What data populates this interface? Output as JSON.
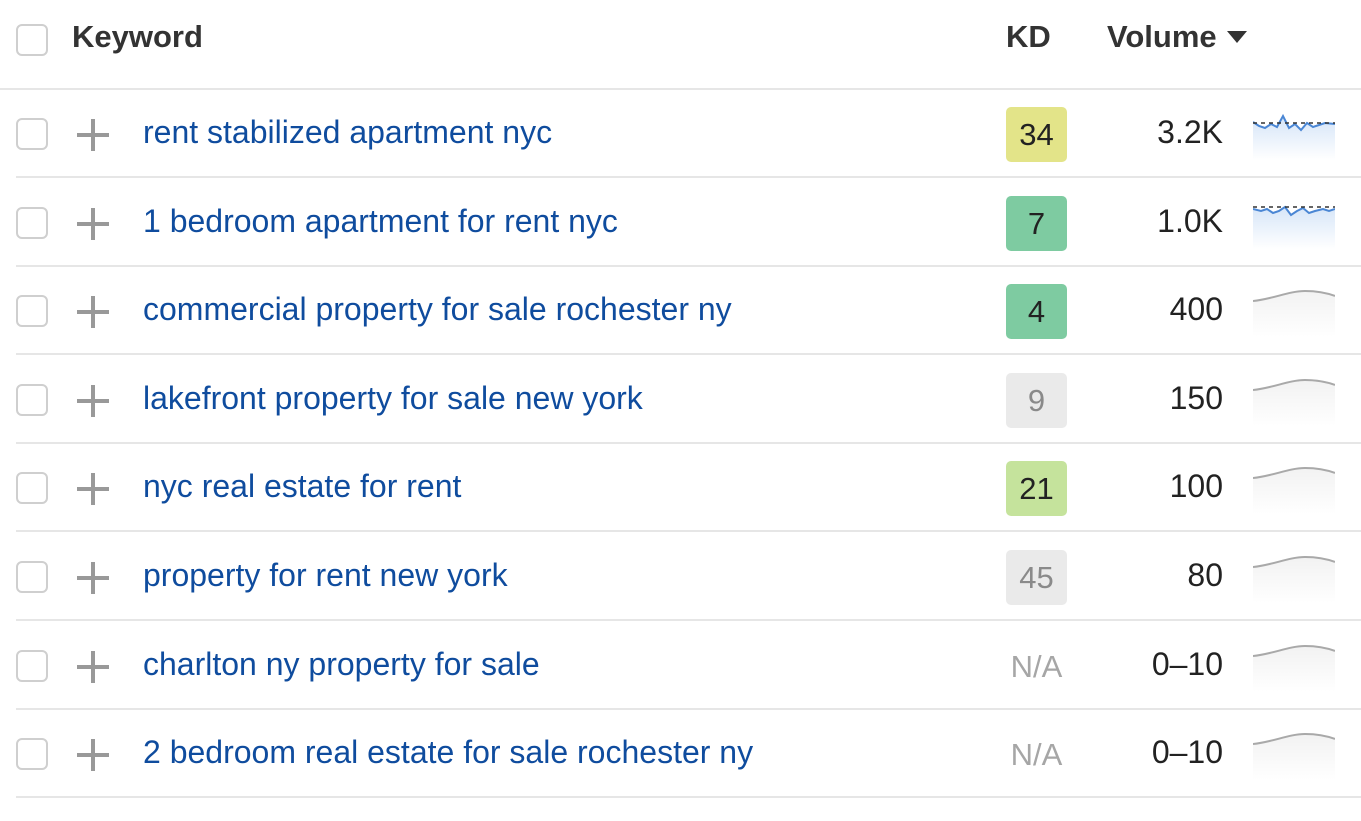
{
  "header": {
    "keyword_label": "Keyword",
    "kd_label": "KD",
    "volume_label": "Volume"
  },
  "colors": {
    "link": "#0f4c9e",
    "kd_yellow": "#e3e489",
    "kd_green": "#7ecba1",
    "kd_lightgreen": "#c5e39c",
    "kd_gray": "#eaeaea",
    "spark_active": "#4a86d4",
    "spark_inactive": "#a9a9a9"
  },
  "rows": [
    {
      "keyword": "rent stabilized apartment nyc",
      "kd": "34",
      "kd_color": "#e3e489",
      "volume": "3.2K",
      "trend": "active-1"
    },
    {
      "keyword": "1 bedroom apartment for rent nyc",
      "kd": "7",
      "kd_color": "#7ecba1",
      "volume": "1.0K",
      "trend": "active-2"
    },
    {
      "keyword": "commercial property for sale rochester ny",
      "kd": "4",
      "kd_color": "#7ecba1",
      "volume": "400",
      "trend": "flat"
    },
    {
      "keyword": "lakefront property for sale new york",
      "kd": "9",
      "kd_color": "#eaeaea",
      "kd_text_color": "#8a8a8a",
      "volume": "150",
      "trend": "flat"
    },
    {
      "keyword": "nyc real estate for rent",
      "kd": "21",
      "kd_color": "#c5e39c",
      "volume": "100",
      "trend": "flat"
    },
    {
      "keyword": "property for rent new york",
      "kd": "45",
      "kd_color": "#eaeaea",
      "kd_text_color": "#8a8a8a",
      "volume": "80",
      "trend": "flat"
    },
    {
      "keyword": "charlton ny property for sale",
      "kd": "N/A",
      "kd_color": "",
      "volume": "0–10",
      "trend": "flat"
    },
    {
      "keyword": "2 bedroom real estate for sale rochester ny",
      "kd": "N/A",
      "kd_color": "",
      "volume": "0–10",
      "trend": "flat"
    }
  ]
}
